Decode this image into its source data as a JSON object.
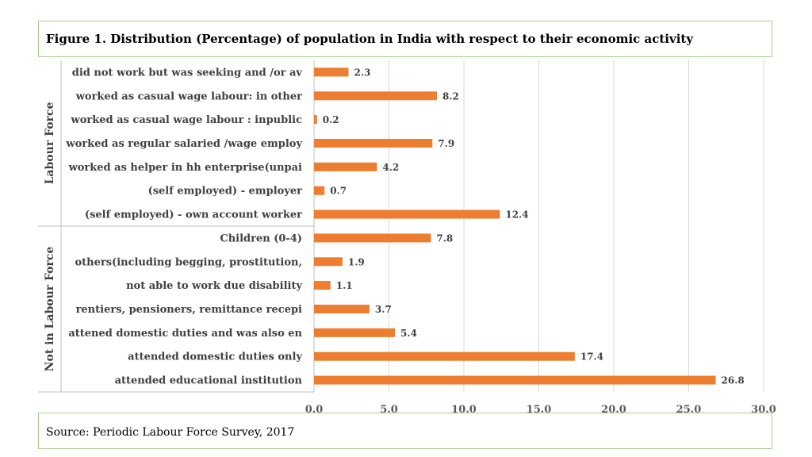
{
  "title": "Figure 1. Distribution (Percentage) of population in India with respect to their economic activity",
  "source": "Source: Periodic Labour Force Survey, 2017",
  "colors": {
    "bar": "#ed7d31",
    "grid": "#d9d9d9",
    "border": "#a9cf8f",
    "axis_line": "#bfbfbf"
  },
  "chart_data": {
    "type": "bar",
    "orientation": "horizontal",
    "title": "Figure 1. Distribution (Percentage) of population in India with respect to their economic activity",
    "xlim": [
      0,
      30
    ],
    "x_ticks": [
      "0.0",
      "5.0",
      "10.0",
      "15.0",
      "20.0",
      "25.0",
      "30.0"
    ],
    "grid": true,
    "groups": [
      {
        "name": "Labour Force",
        "categories": [
          "did not work but was seeking and /or av",
          "worked as casual wage labour: in other",
          "worked as casual wage labour : inpublic",
          "worked as regular salaried /wage employ",
          "worked as helper in hh enterprise(unpai",
          "(self employed) - employer",
          "(self employed) - own account worker"
        ],
        "values": [
          2.3,
          8.2,
          0.2,
          7.9,
          4.2,
          0.7,
          12.4
        ],
        "value_labels": [
          "2.3",
          "8.2",
          "0.2",
          "7.9",
          "4.2",
          "0.7",
          "12.4"
        ]
      },
      {
        "name": "Not in Labour Force",
        "categories": [
          "Children (0-4)",
          "others(including begging, prostitution,",
          "not able to work due disability",
          "rentiers, pensioners, remittance recepi",
          "attened domestic duties and was also en",
          "attended domestic duties only",
          "attended educational institution"
        ],
        "values": [
          7.8,
          1.9,
          1.1,
          3.7,
          5.4,
          17.4,
          26.8
        ],
        "value_labels": [
          "7.8",
          "1.9",
          "1.1",
          "3.7",
          "5.4",
          "17.4",
          "26.8"
        ]
      }
    ]
  }
}
